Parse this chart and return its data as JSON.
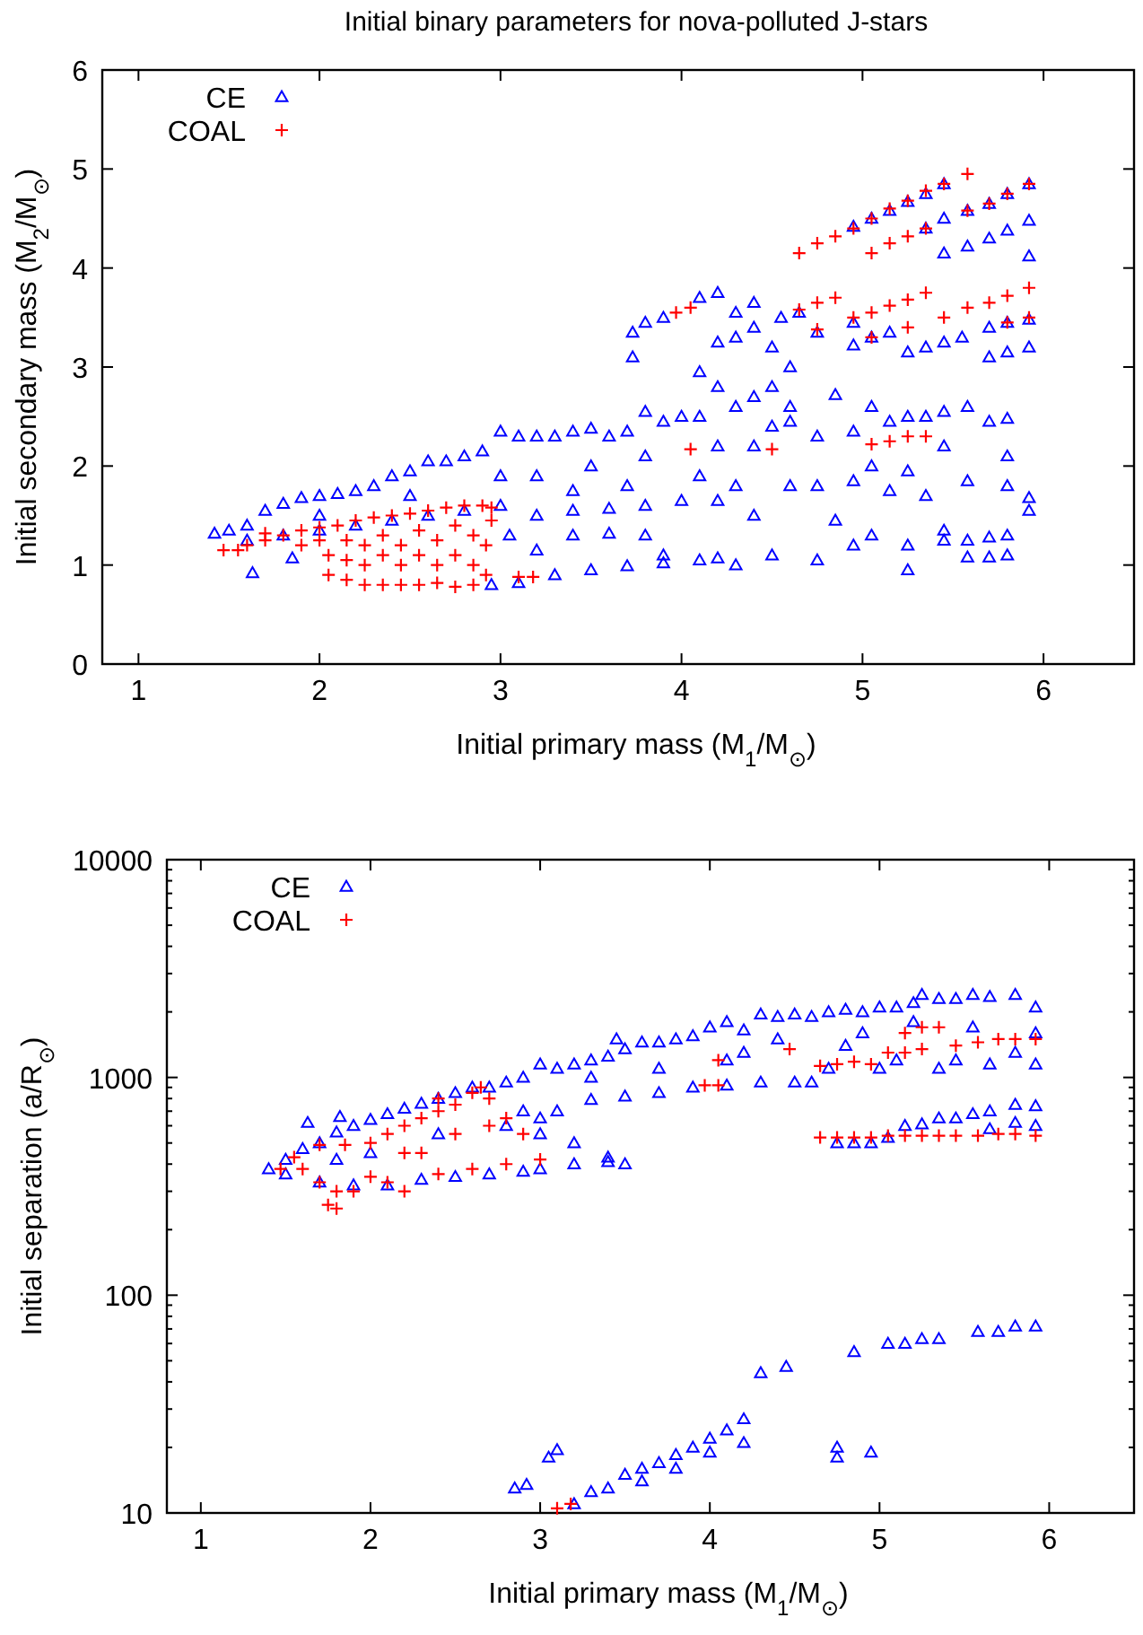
{
  "chart_data": [
    {
      "type": "scatter",
      "title": "Initial binary parameters for nova-polluted J-stars",
      "xlabel": "Initial primary mass (M$_{1}$/M$_{⊙}$)",
      "ylabel": "Initial secondary mass (M$_{2}$/M$_{⊙}$)",
      "xlim": [
        0.8,
        6.5
      ],
      "ylim": [
        0,
        6
      ],
      "xticks": [
        1,
        2,
        3,
        4,
        5,
        6
      ],
      "yticks": [
        0,
        1,
        2,
        3,
        4,
        5,
        6
      ],
      "grid": false,
      "legend": "top left",
      "series": [
        {
          "name": "CE",
          "color": "#0000ff",
          "marker": "triangle",
          "x": [
            1.42,
            1.5,
            1.6,
            1.7,
            1.8,
            1.9,
            2.0,
            2.1,
            2.2,
            2.3,
            2.4,
            2.5,
            2.6,
            2.7,
            2.8,
            2.9,
            3.0,
            3.1,
            3.2,
            3.3,
            3.4,
            3.5,
            3.6,
            3.7,
            3.8,
            3.9,
            4.0,
            1.6,
            1.8,
            2.0,
            2.2,
            2.4,
            2.6,
            2.8,
            3.0,
            3.2,
            3.4,
            3.6,
            3.8,
            4.0,
            4.2,
            2.0,
            2.5,
            3.0,
            3.2,
            3.5,
            3.8,
            3.4,
            3.7,
            4.1,
            4.2,
            1.63,
            1.85,
            2.95,
            3.05,
            3.2,
            3.4,
            3.6,
            3.8,
            3.9,
            3.1,
            3.3,
            3.5,
            3.7,
            3.9,
            4.1,
            4.2,
            4.1,
            4.2,
            4.3,
            4.4,
            4.5,
            4.6,
            4.6,
            4.6,
            4.5,
            4.4,
            4.3,
            4.2,
            4.1,
            4.5,
            4.4,
            4.3,
            4.6,
            4.4,
            4.5,
            4.3,
            3.73,
            3.73,
            3.8,
            3.9,
            4.1,
            4.2,
            4.3,
            4.4,
            4.55,
            4.65,
            4.75,
            4.95,
            4.95,
            5.05,
            5.15,
            5.25,
            5.35,
            5.45,
            5.55,
            5.7,
            5.8,
            5.92,
            5.92,
            5.8,
            5.7,
            4.95,
            5.05,
            5.15,
            5.25,
            5.35,
            5.45,
            5.58,
            5.7,
            5.8,
            5.92,
            5.45,
            5.58,
            5.7,
            5.8,
            5.92,
            5.92,
            5.35,
            5.45,
            4.75,
            4.85,
            4.95,
            5.05,
            5.15,
            5.25,
            5.35,
            5.45,
            5.58,
            5.7,
            5.8,
            5.05,
            5.25,
            5.45,
            5.8,
            4.75,
            4.95,
            5.15,
            5.35,
            5.58,
            5.8,
            5.92,
            5.92,
            4.85,
            5.05,
            5.25,
            5.45,
            5.58,
            5.7,
            5.8,
            4.75,
            4.95,
            5.25,
            5.45,
            5.58,
            5.7,
            5.8
          ],
          "values": [
            1.32,
            1.35,
            1.4,
            1.55,
            1.62,
            1.68,
            1.7,
            1.72,
            1.75,
            1.8,
            1.9,
            1.95,
            2.05,
            2.05,
            2.1,
            2.15,
            2.35,
            2.3,
            2.3,
            2.3,
            2.35,
            2.38,
            2.3,
            2.35,
            2.55,
            2.45,
            2.5,
            1.25,
            1.3,
            1.35,
            1.4,
            1.45,
            1.5,
            1.55,
            1.6,
            1.5,
            1.55,
            1.57,
            1.6,
            1.65,
            1.65,
            1.5,
            1.7,
            1.9,
            1.9,
            2.0,
            2.1,
            1.75,
            1.8,
            1.9,
            2.2,
            0.92,
            1.07,
            0.8,
            1.3,
            1.15,
            1.3,
            1.32,
            1.3,
            1.1,
            0.82,
            0.9,
            0.95,
            0.99,
            1.02,
            1.05,
            1.07,
            2.95,
            3.25,
            3.3,
            3.4,
            3.2,
            3.0,
            2.45,
            2.6,
            2.8,
            2.7,
            2.6,
            2.8,
            2.5,
            2.4,
            2.2,
            1.8,
            1.8,
            1.5,
            1.1,
            1.0,
            3.1,
            3.35,
            3.45,
            3.5,
            3.7,
            3.75,
            3.55,
            3.65,
            3.5,
            3.55,
            3.35,
            3.45,
            3.22,
            3.3,
            3.35,
            3.15,
            3.2,
            3.25,
            3.3,
            3.1,
            3.15,
            3.2,
            3.48,
            3.45,
            3.4,
            4.42,
            4.5,
            4.58,
            4.67,
            4.75,
            4.85,
            4.58,
            4.65,
            4.75,
            4.85,
            4.15,
            4.22,
            4.3,
            4.38,
            4.48,
            4.12,
            4.4,
            4.5,
            2.3,
            2.72,
            2.35,
            2.6,
            2.45,
            2.5,
            2.5,
            2.55,
            2.6,
            2.45,
            2.48,
            2.0,
            1.95,
            2.2,
            2.1,
            1.8,
            1.85,
            1.75,
            1.7,
            1.85,
            1.8,
            1.68,
            1.55,
            1.45,
            1.3,
            1.2,
            1.35,
            1.25,
            1.28,
            1.3,
            1.05,
            1.2,
            0.95,
            1.25,
            1.08,
            1.08,
            1.1
          ]
        },
        {
          "name": "COAL",
          "color": "#ff0000",
          "marker": "cross",
          "x": [
            1.47,
            1.55,
            1.6,
            1.7,
            1.8,
            1.9,
            2.0,
            1.7,
            1.9,
            2.0,
            2.1,
            2.2,
            2.3,
            2.4,
            2.5,
            2.6,
            2.7,
            2.8,
            2.9,
            2.95,
            2.05,
            2.05,
            2.15,
            2.15,
            2.15,
            2.25,
            2.25,
            2.25,
            2.35,
            2.35,
            2.35,
            2.45,
            2.45,
            2.45,
            2.55,
            2.55,
            2.55,
            2.65,
            2.65,
            2.65,
            2.75,
            2.75,
            2.75,
            2.85,
            2.85,
            2.85,
            2.92,
            2.92,
            2.95,
            3.1,
            3.18,
            4.05,
            4.5,
            5.05,
            5.15,
            5.25,
            5.35,
            3.97,
            4.05,
            4.65,
            4.75,
            4.85,
            4.95,
            5.05,
            5.15,
            5.25,
            5.35,
            5.45,
            5.58,
            5.7,
            5.8,
            5.92,
            4.75,
            5.05,
            5.25,
            5.8,
            5.92,
            4.65,
            4.75,
            4.85,
            4.95,
            5.05,
            5.15,
            5.25,
            5.35,
            5.05,
            5.15,
            5.25,
            5.35,
            5.45,
            5.58,
            5.58,
            5.7,
            5.8,
            5.92
          ],
          "values": [
            1.15,
            1.15,
            1.2,
            1.25,
            1.3,
            1.35,
            1.38,
            1.32,
            1.2,
            1.25,
            1.4,
            1.45,
            1.48,
            1.5,
            1.52,
            1.55,
            1.58,
            1.6,
            1.6,
            1.58,
            0.9,
            1.1,
            0.85,
            1.05,
            1.25,
            0.8,
            1.0,
            1.2,
            0.8,
            1.1,
            1.3,
            0.8,
            1.0,
            1.2,
            0.8,
            1.1,
            1.35,
            0.82,
            1.0,
            1.25,
            0.78,
            1.1,
            1.4,
            0.8,
            1.0,
            1.3,
            0.9,
            1.2,
            1.45,
            0.88,
            0.88,
            2.17,
            2.17,
            2.22,
            2.25,
            2.3,
            2.3,
            3.55,
            3.6,
            3.58,
            3.65,
            3.7,
            3.5,
            3.55,
            3.62,
            3.68,
            3.75,
            3.5,
            3.6,
            3.65,
            3.72,
            3.8,
            3.38,
            3.3,
            3.4,
            3.45,
            3.5,
            4.15,
            4.25,
            4.32,
            4.4,
            4.15,
            4.25,
            4.32,
            4.4,
            4.5,
            4.6,
            4.68,
            4.78,
            4.85,
            4.95,
            4.58,
            4.65,
            4.75,
            4.85
          ]
        }
      ]
    },
    {
      "type": "scatter",
      "xlabel": "Initial primary mass (M$_{1}$/M$_{⊙}$)",
      "ylabel": "Initial separation (a/R$_{⊙}$)",
      "xlim": [
        0.8,
        6.5
      ],
      "ylim": [
        10,
        10000
      ],
      "log": "y",
      "xticks": [
        1,
        2,
        3,
        4,
        5,
        6
      ],
      "yticks": [
        10,
        {
          "value": 20,
          "label": null
        },
        {
          "value": 30,
          "label": null
        },
        {
          "value": 40,
          "label": null
        },
        {
          "value": 50,
          "label": null
        },
        {
          "value": 60,
          "label": null
        },
        {
          "value": 70,
          "label": null
        },
        {
          "value": 80,
          "label": null
        },
        {
          "value": 90,
          "label": null
        },
        100,
        {
          "value": 200,
          "label": null
        },
        {
          "value": 300,
          "label": null
        },
        {
          "value": 400,
          "label": null
        },
        {
          "value": 500,
          "label": null
        },
        {
          "value": 600,
          "label": null
        },
        {
          "value": 700,
          "label": null
        },
        {
          "value": 800,
          "label": null
        },
        {
          "value": 900,
          "label": null
        },
        1000,
        {
          "value": 2000,
          "label": null
        },
        {
          "value": 3000,
          "label": null
        },
        {
          "value": 4000,
          "label": null
        },
        {
          "value": 5000,
          "label": null
        },
        {
          "value": 6000,
          "label": null
        },
        {
          "value": 7000,
          "label": null
        },
        {
          "value": 8000,
          "label": null
        },
        {
          "value": 9000,
          "label": null
        },
        10000
      ],
      "grid": false,
      "legend": "top left",
      "series": [
        {
          "name": "CE",
          "color": "#0000ff",
          "marker": "triangle",
          "x": [
            1.4,
            1.5,
            1.6,
            1.63,
            1.7,
            1.8,
            1.82,
            1.9,
            2.0,
            2.1,
            2.2,
            2.3,
            2.4,
            2.5,
            2.6,
            2.7,
            2.8,
            2.9,
            3.0,
            3.1,
            3.2,
            3.3,
            3.4,
            3.45,
            3.5,
            3.6,
            3.7,
            3.8,
            3.9,
            4.0,
            4.1,
            4.2,
            4.3,
            4.4,
            4.5,
            4.6,
            1.5,
            1.7,
            1.9,
            2.1,
            2.3,
            2.5,
            2.7,
            2.9,
            3.0,
            3.2,
            3.4,
            3.5,
            3.0,
            3.2,
            3.4,
            3.0,
            2.9,
            3.1,
            3.3,
            3.5,
            3.7,
            3.9,
            4.1,
            4.3,
            4.5,
            4.6,
            3.3,
            3.7,
            4.1,
            4.4,
            4.2,
            2.0,
            2.4,
            2.8,
            1.8,
            4.7,
            4.7,
            4.8,
            4.9,
            5.0,
            5.1,
            5.2,
            5.25,
            5.35,
            5.45,
            5.55,
            5.65,
            5.8,
            5.92,
            4.8,
            4.9,
            5.0,
            5.1,
            5.2,
            5.35,
            5.45,
            5.55,
            5.65,
            5.8,
            5.92,
            5.92,
            4.75,
            4.85,
            4.95,
            5.05,
            5.15,
            5.25,
            5.35,
            5.45,
            5.55,
            5.65,
            5.8,
            5.92,
            5.92,
            5.8,
            5.65,
            2.85,
            2.92,
            3.05,
            3.1,
            3.2,
            3.3,
            3.4,
            3.5,
            3.6,
            3.7,
            3.8,
            3.9,
            4.0,
            4.1,
            4.2,
            4.2,
            4.0,
            3.8,
            3.6,
            4.3,
            4.45,
            4.75,
            4.75,
            4.95,
            4.85,
            5.05,
            5.15,
            5.25,
            5.35,
            5.58,
            5.7,
            5.8,
            5.92
          ],
          "values": [
            380,
            420,
            470,
            620,
            500,
            560,
            660,
            600,
            640,
            680,
            720,
            760,
            800,
            850,
            900,
            900,
            950,
            1000,
            1150,
            1100,
            1150,
            1200,
            1250,
            1500,
            1350,
            1450,
            1450,
            1500,
            1550,
            1700,
            1800,
            1650,
            1950,
            1900,
            1950,
            1900,
            360,
            330,
            320,
            320,
            340,
            350,
            360,
            370,
            380,
            400,
            410,
            400,
            550,
            500,
            430,
            650,
            700,
            700,
            790,
            820,
            850,
            900,
            920,
            950,
            950,
            950,
            1000,
            1100,
            1200,
            1500,
            1300,
            450,
            550,
            600,
            420,
            1100,
            2000,
            2050,
            2000,
            2100,
            2100,
            2200,
            2400,
            2300,
            2300,
            2400,
            2350,
            2400,
            2100,
            1400,
            1600,
            1100,
            1200,
            1800,
            1100,
            1200,
            1700,
            1150,
            1300,
            1150,
            1600,
            500,
            500,
            500,
            530,
            600,
            610,
            650,
            650,
            680,
            700,
            750,
            740,
            600,
            620,
            580,
            13,
            13.5,
            18,
            19.5,
            11,
            12.5,
            13,
            15,
            16,
            17,
            18.5,
            20,
            22,
            24,
            27,
            21,
            19,
            16,
            14,
            44,
            47,
            20,
            18,
            19,
            55,
            60,
            60,
            63,
            63,
            68,
            68,
            72,
            72
          ]
        },
        {
          "name": "COAL",
          "color": "#ff0000",
          "marker": "cross",
          "x": [
            1.47,
            1.55,
            1.6,
            1.7,
            1.75,
            1.8,
            1.8,
            1.9,
            1.7,
            1.85,
            2.0,
            2.0,
            2.1,
            2.2,
            2.1,
            2.2,
            2.3,
            2.4,
            2.5,
            2.6,
            2.65,
            2.7,
            2.8,
            2.9,
            3.0,
            2.8,
            2.6,
            2.4,
            2.3,
            2.5,
            2.7,
            2.4,
            2.2,
            3.1,
            3.18,
            3.97,
            4.05,
            4.05,
            4.47,
            4.65,
            4.75,
            4.85,
            4.95,
            5.05,
            5.15,
            5.25,
            5.35,
            5.15,
            5.25,
            5.45,
            5.58,
            5.7,
            5.8,
            5.92,
            4.65,
            4.75,
            4.85,
            4.95,
            5.05,
            5.15,
            5.25,
            5.35,
            5.45,
            5.58,
            5.7,
            5.8,
            5.92
          ],
          "values": [
            380,
            430,
            380,
            330,
            260,
            250,
            300,
            300,
            490,
            490,
            350,
            500,
            330,
            300,
            550,
            600,
            650,
            700,
            750,
            850,
            900,
            800,
            650,
            550,
            420,
            400,
            380,
            360,
            450,
            550,
            600,
            800,
            450,
            10.5,
            11,
            920,
            920,
            1200,
            1350,
            1130,
            1150,
            1180,
            1150,
            1300,
            1600,
            1700,
            1700,
            1300,
            1350,
            1400,
            1450,
            1500,
            1500,
            1500,
            530,
            530,
            530,
            530,
            540,
            540,
            540,
            540,
            540,
            540,
            550,
            550,
            540
          ]
        }
      ]
    }
  ]
}
